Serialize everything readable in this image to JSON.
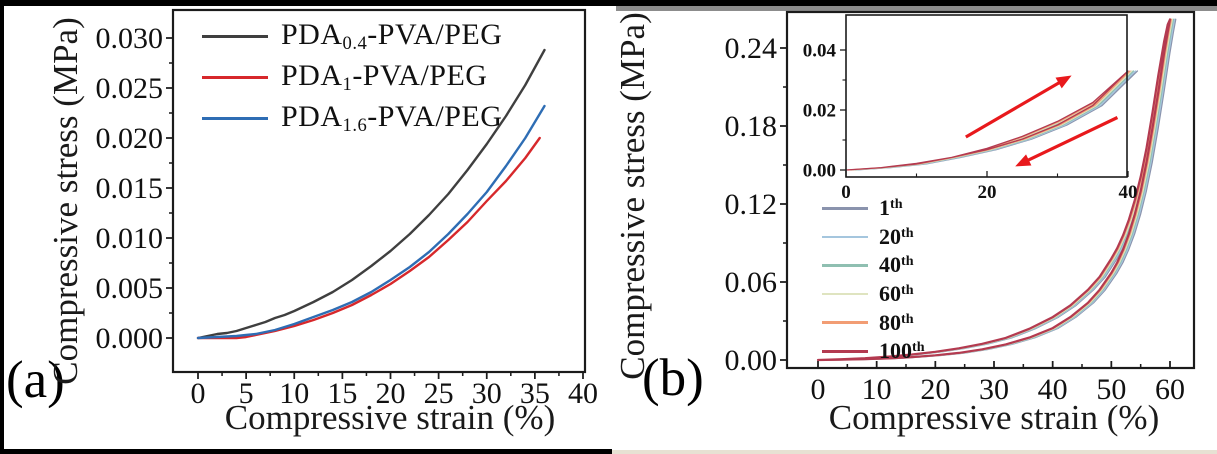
{
  "panels": {
    "a": {
      "label": "(a)",
      "legend": [
        {
          "pre": "PDA",
          "sub": "0.4",
          "post": "-PVA/PEG"
        },
        {
          "pre": "PDA",
          "sub": "1",
          "post": "-PVA/PEG"
        },
        {
          "pre": "PDA",
          "sub": "1.6",
          "post": "-PVA/PEG"
        }
      ]
    },
    "b": {
      "label": "(b)",
      "legend": [
        {
          "num": "1",
          "sup": "th"
        },
        {
          "num": "20",
          "sup": "th"
        },
        {
          "num": "40",
          "sup": "th"
        },
        {
          "num": "60",
          "sup": "th"
        },
        {
          "num": "80",
          "sup": "th"
        },
        {
          "num": "100",
          "sup": "th"
        }
      ]
    }
  },
  "chart_data": [
    {
      "type": "line",
      "title": "",
      "xlabel": "Compressive strain (%)",
      "ylabel": "Compressive stress (MPa)",
      "xlim": [
        0,
        40
      ],
      "ylim": [
        0,
        0.03
      ],
      "grid": false,
      "legend_position": "top-left-inside",
      "x_tick_vals": [
        0,
        5,
        10,
        15,
        20,
        25,
        30,
        35,
        40
      ],
      "x_tick_labels": [
        "0",
        "5",
        "10",
        "15",
        "20",
        "25",
        "30",
        "35",
        "40"
      ],
      "y_tick_vals": [
        0,
        0.005,
        0.01,
        0.015,
        0.02,
        0.025,
        0.03
      ],
      "y_tick_labels": [
        "0.000",
        "0.005",
        "0.010",
        "0.015",
        "0.020",
        "0.025",
        "0.030"
      ],
      "series": [
        {
          "name": "PDA0.4-PVA/PEG",
          "color": "#3f3f3f",
          "x": [
            0,
            1,
            2,
            3,
            4,
            5,
            6,
            7,
            8,
            9,
            10,
            12,
            14,
            16,
            18,
            20,
            22,
            24,
            26,
            28,
            30,
            32,
            34,
            36
          ],
          "y": [
            0,
            0.0002,
            0.0004,
            0.0005,
            0.0007,
            0.001,
            0.0013,
            0.0016,
            0.002,
            0.0023,
            0.0027,
            0.0036,
            0.0046,
            0.0058,
            0.0072,
            0.0087,
            0.0104,
            0.0123,
            0.0144,
            0.0168,
            0.0194,
            0.0222,
            0.0253,
            0.0288
          ]
        },
        {
          "name": "PDA1-PVA/PEG",
          "color": "#d7282b",
          "x": [
            0,
            2,
            4,
            5,
            6,
            8,
            10,
            12,
            14,
            16,
            18,
            20,
            22,
            24,
            26,
            28,
            30,
            32,
            34,
            35.5
          ],
          "y": [
            0,
            0.0,
            0.0,
            0.0001,
            0.0003,
            0.0007,
            0.0012,
            0.0018,
            0.0025,
            0.0033,
            0.0043,
            0.0054,
            0.0067,
            0.0081,
            0.0098,
            0.0116,
            0.0137,
            0.0157,
            0.018,
            0.02
          ]
        },
        {
          "name": "PDA1.6-PVA/PEG",
          "color": "#2e6db4",
          "x": [
            0,
            2,
            4,
            5,
            6,
            8,
            10,
            12,
            14,
            16,
            18,
            20,
            22,
            24,
            26,
            28,
            30,
            32,
            34,
            36
          ],
          "y": [
            0,
            0.0001,
            0.0002,
            0.0003,
            0.0004,
            0.0008,
            0.0014,
            0.0021,
            0.0028,
            0.0036,
            0.0046,
            0.0058,
            0.0071,
            0.0086,
            0.0104,
            0.0124,
            0.0146,
            0.0172,
            0.02,
            0.0232
          ]
        }
      ]
    },
    {
      "type": "line",
      "title": "",
      "xlabel": "Compressive strain (%)",
      "ylabel": "Compressive stress (MPa)",
      "xlim": [
        0,
        60
      ],
      "ylim": [
        0,
        0.24
      ],
      "grid": false,
      "legend_position": "left-middle-inside",
      "x_tick_vals": [
        0,
        10,
        20,
        30,
        40,
        50,
        60
      ],
      "x_tick_labels": [
        "0",
        "10",
        "20",
        "30",
        "40",
        "50",
        "60"
      ],
      "y_tick_vals": [
        0,
        0.06,
        0.12,
        0.18,
        0.24
      ],
      "y_tick_labels": [
        "0.00",
        "0.06",
        "0.12",
        "0.18",
        "0.24"
      ],
      "x_load": [
        0,
        4,
        8,
        12,
        16,
        20,
        24,
        28,
        32,
        36,
        40,
        43,
        46,
        48,
        50,
        51,
        52,
        53,
        54,
        55,
        56,
        57,
        58,
        59,
        59.6,
        60
      ],
      "y_load": [
        0,
        0.0006,
        0.0014,
        0.0026,
        0.0042,
        0.0063,
        0.009,
        0.0125,
        0.017,
        0.024,
        0.033,
        0.042,
        0.054,
        0.064,
        0.078,
        0.086,
        0.096,
        0.108,
        0.123,
        0.141,
        0.163,
        0.19,
        0.219,
        0.245,
        0.258,
        0.262
      ],
      "x_unload": [
        60,
        59.6,
        59,
        58,
        57,
        56,
        55,
        54,
        53,
        52,
        51,
        50,
        48,
        46,
        43,
        40,
        36,
        32,
        28,
        24,
        20,
        16,
        12,
        8,
        4,
        0
      ],
      "y_unload": [
        0.262,
        0.252,
        0.236,
        0.206,
        0.178,
        0.152,
        0.13,
        0.112,
        0.097,
        0.085,
        0.075,
        0.067,
        0.054,
        0.044,
        0.033,
        0.0245,
        0.0172,
        0.012,
        0.0082,
        0.0055,
        0.0036,
        0.0022,
        0.0012,
        0.0006,
        0.0002,
        0
      ],
      "series": [
        {
          "name": "1th",
          "color": "#8a93ad",
          "dx": 0.95,
          "lw": 1.6
        },
        {
          "name": "20th",
          "color": "#a5c6de",
          "dx": 0.75,
          "lw": 1.6
        },
        {
          "name": "40th",
          "color": "#8fbfb1",
          "dx": 0.55,
          "lw": 1.6
        },
        {
          "name": "60th",
          "color": "#dfe4c0",
          "dx": 0.38,
          "lw": 1.6
        },
        {
          "name": "80th",
          "color": "#f29d74",
          "dx": 0.2,
          "lw": 1.6
        },
        {
          "name": "100th",
          "color": "#b33a50",
          "dx": 0.0,
          "lw": 2.2
        }
      ],
      "inset": {
        "type": "line",
        "xlim": [
          0,
          40
        ],
        "ylim": [
          0,
          0.04
        ],
        "x_tick_vals": [
          0,
          20,
          40
        ],
        "x_tick_labels": [
          "0",
          "20",
          "40"
        ],
        "y_tick_vals": [
          0,
          0.02,
          0.04
        ],
        "y_tick_labels": [
          "0.00",
          "0.02",
          "0.04"
        ],
        "x_load": [
          0,
          5,
          10,
          15,
          20,
          25,
          30,
          35,
          40
        ],
        "y_load": [
          0,
          0.0008,
          0.002,
          0.0042,
          0.0072,
          0.0112,
          0.0162,
          0.0225,
          0.033
        ],
        "x_unload": [
          40,
          35,
          30,
          25,
          20,
          15,
          10,
          5,
          0
        ],
        "y_unload": [
          0.033,
          0.0215,
          0.015,
          0.0103,
          0.0068,
          0.0042,
          0.0022,
          0.0008,
          0
        ],
        "arrow_color": "#e8191c",
        "arrows": [
          {
            "from": [
              17,
              0.011
            ],
            "to": [
              32,
              0.0315
            ],
            "direction": "up-right"
          },
          {
            "from": [
              38.5,
              0.0175
            ],
            "to": [
              24,
              0.0012
            ],
            "direction": "down-left"
          }
        ]
      }
    }
  ]
}
